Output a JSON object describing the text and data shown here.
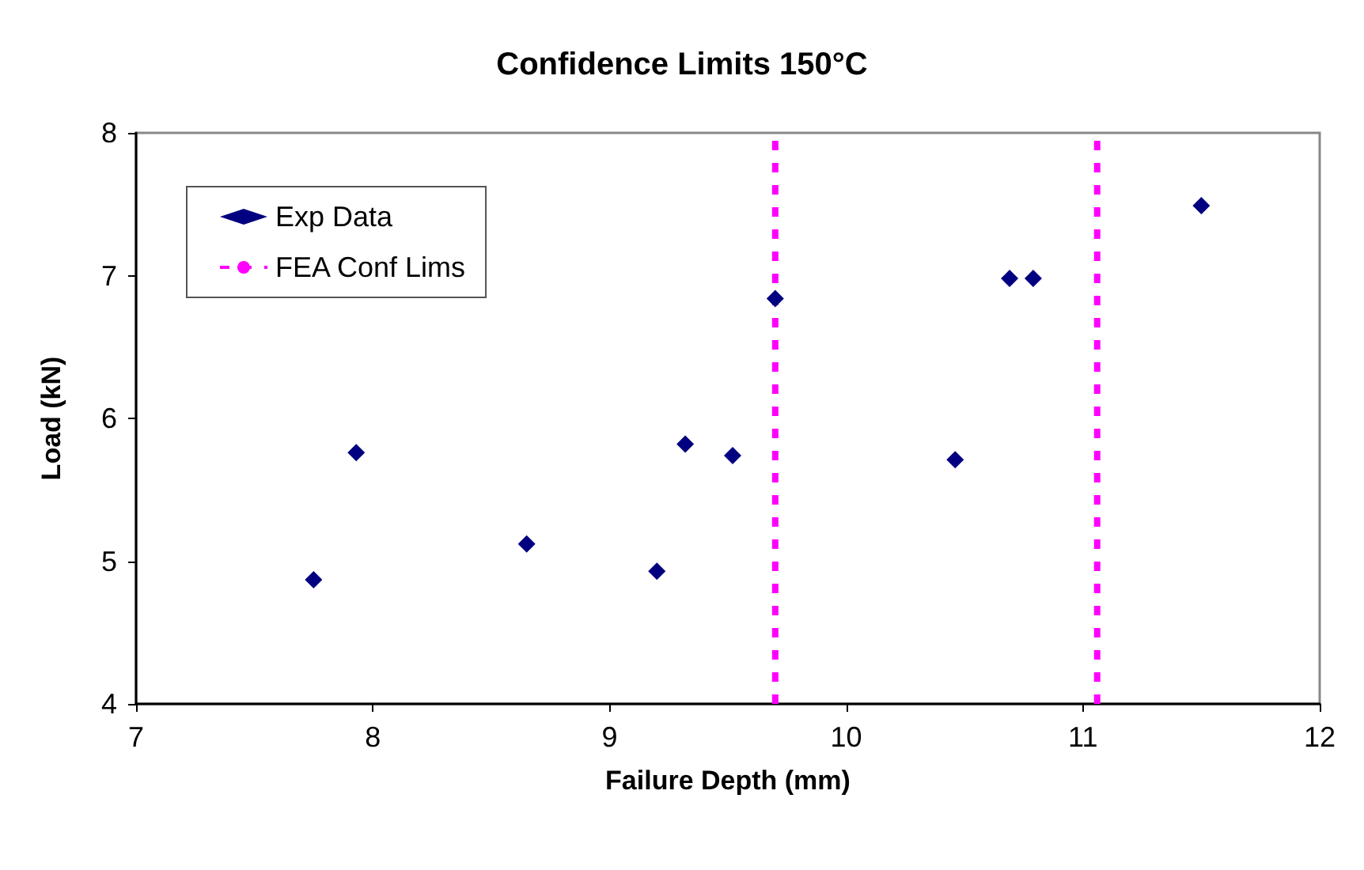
{
  "chart_data": {
    "type": "scatter",
    "title": "Confidence Limits 150°C",
    "xlabel": "Failure Depth (mm)",
    "ylabel": "Load (kN)",
    "xlim": [
      7,
      12
    ],
    "xticks": [
      7,
      8,
      9,
      10,
      11,
      12
    ],
    "ylim": [
      4,
      8
    ],
    "yticks": [
      4,
      5,
      6,
      7,
      8
    ],
    "grid": false,
    "legend": "top left",
    "series": [
      {
        "name": "Exp Data",
        "color": "#000080",
        "marker": "diamond",
        "x": [
          7.75,
          7.93,
          8.65,
          9.2,
          9.32,
          9.52,
          9.7,
          10.46,
          10.69,
          10.79,
          11.5
        ],
        "values": [
          4.87,
          5.76,
          5.12,
          4.93,
          5.82,
          5.74,
          6.84,
          5.71,
          6.98,
          6.98,
          7.49
        ]
      },
      {
        "name": "FEA Conf Lims",
        "type": "line",
        "color": "#ff00ff",
        "marker": "none",
        "line_style": "dashed",
        "x": [
          9.7,
          9.7,
          null,
          11.06,
          11.06
        ],
        "values": [
          4,
          8,
          null,
          4,
          8
        ]
      }
    ]
  }
}
